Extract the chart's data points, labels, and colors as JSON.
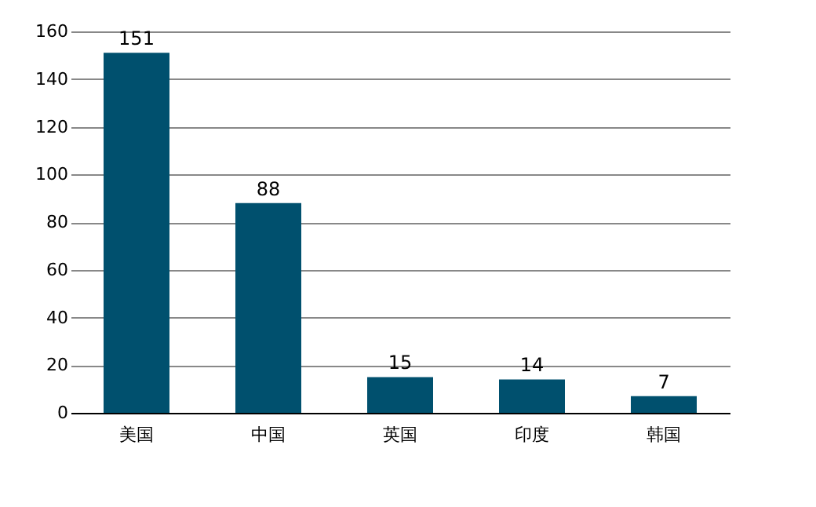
{
  "chart_data": {
    "type": "bar",
    "categories": [
      "美国",
      "中国",
      "英国",
      "印度",
      "韩国"
    ],
    "values": [
      151,
      88,
      15,
      14,
      7
    ],
    "color": "#00506e",
    "ylim": [
      0,
      160
    ],
    "yticks": [
      0,
      20,
      40,
      60,
      80,
      100,
      120,
      140,
      160
    ],
    "grid": "y",
    "data_labels": true
  }
}
